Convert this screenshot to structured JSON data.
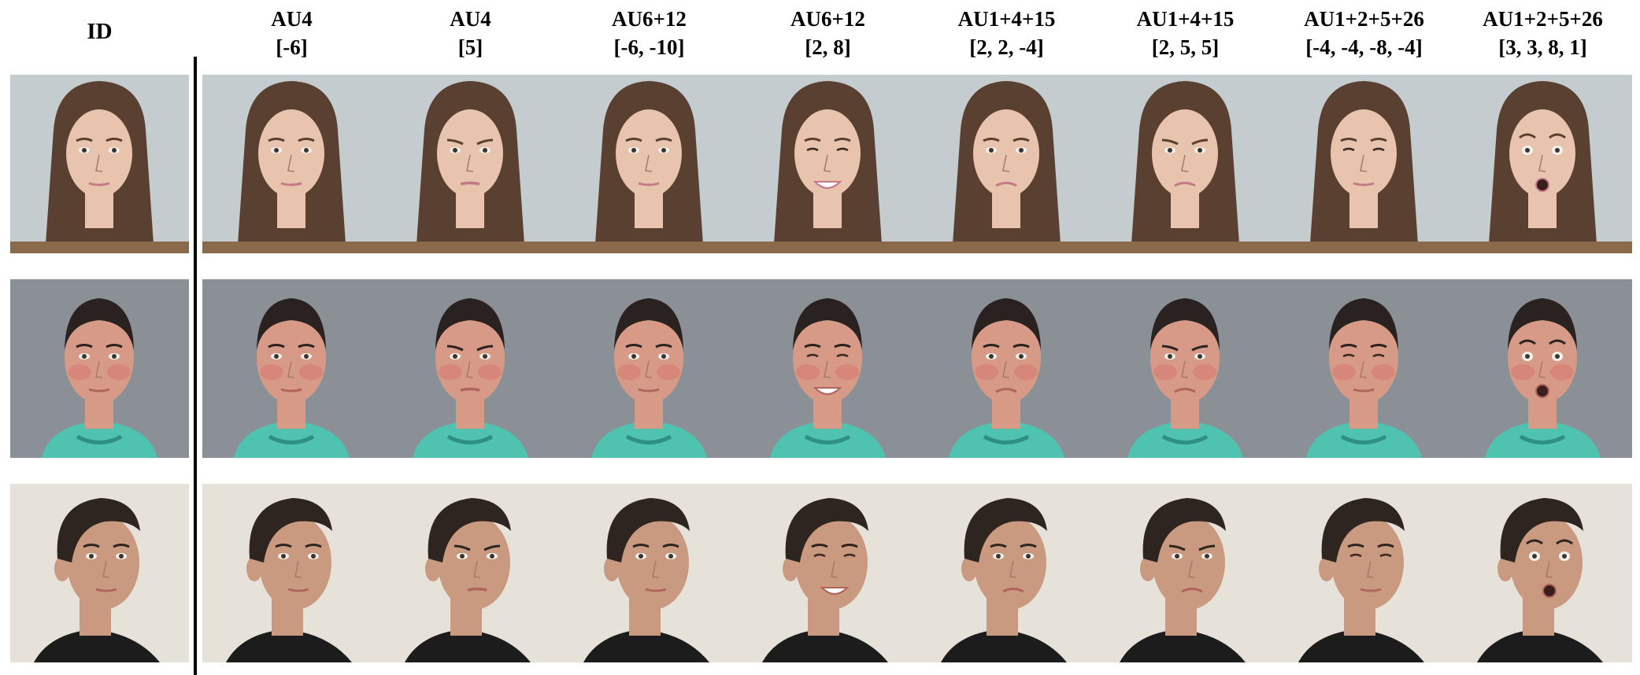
{
  "id_label": "ID",
  "columns": [
    {
      "au": "AU4",
      "values": "[-6]"
    },
    {
      "au": "AU4",
      "values": "[5]"
    },
    {
      "au": "AU6+12",
      "values": "[-6, -10]"
    },
    {
      "au": "AU6+12",
      "values": "[2, 8]"
    },
    {
      "au": "AU1+4+15",
      "values": "[2, 2, -4]"
    },
    {
      "au": "AU1+4+15",
      "values": "[2, 5, 5]"
    },
    {
      "au": "AU1+2+5+26",
      "values": "[-4, -4, -8, -4]"
    },
    {
      "au": "AU1+2+5+26",
      "values": "[3, 3, 8, 1]"
    }
  ],
  "rows": [
    {
      "subject": "woman-long-hair",
      "bg": "#c4ccd0",
      "skin": "#e8c3ad",
      "hair": "#5a4030",
      "shirt": "#8a6a4a"
    },
    {
      "subject": "man-short-hair-teal-hoodie",
      "bg": "#8b9097",
      "skin": "#d79a86",
      "hair": "#2a2220",
      "shirt": "#4fc2b0"
    },
    {
      "subject": "man-dark-hair-profile",
      "bg": "#e6e1d9",
      "skin": "#c99a80",
      "hair": "#2e2420",
      "shirt": "#1c1c1c"
    }
  ],
  "expressions": [
    "neutral",
    "frown",
    "neutral-soft",
    "smile",
    "sad-raise",
    "sad-frown",
    "wince",
    "surprise"
  ]
}
